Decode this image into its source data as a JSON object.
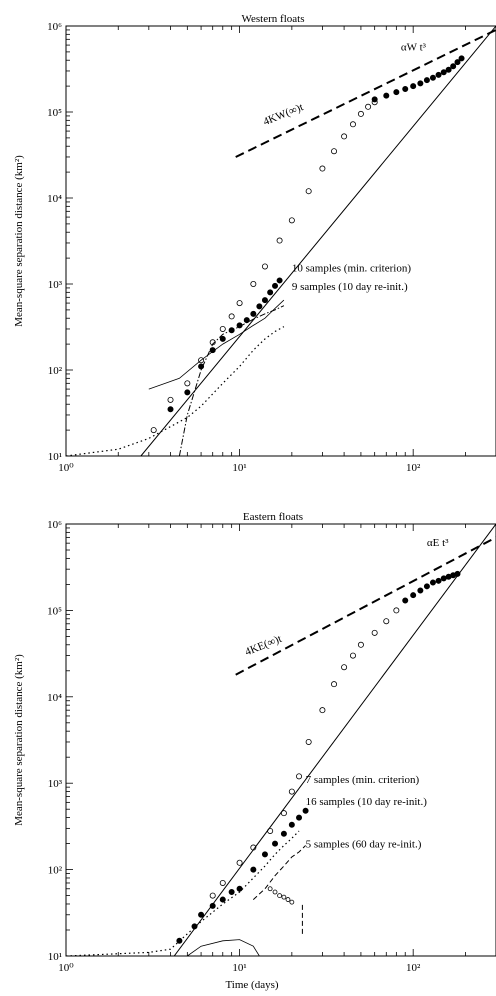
{
  "chart_data": [
    {
      "type": "scatter",
      "title": "Western floats",
      "xlabel": "",
      "ylabel": "Mean-square separation distance (km²)",
      "xscale": "log",
      "yscale": "log",
      "xlim": [
        1,
        300
      ],
      "ylim": [
        10,
        1000000
      ],
      "x_ticks": [
        {
          "value": 1,
          "label": "10⁰"
        },
        {
          "value": 10,
          "label": "10¹"
        },
        {
          "value": 100,
          "label": "10²"
        }
      ],
      "y_ticks": [
        {
          "value": 10,
          "label": "10¹"
        },
        {
          "value": 100,
          "label": "10²"
        },
        {
          "value": 1000,
          "label": "10³"
        },
        {
          "value": 10000,
          "label": "10⁴"
        },
        {
          "value": 100000,
          "label": "10⁵"
        },
        {
          "value": 1000000,
          "label": "10⁶"
        }
      ],
      "grid": false,
      "legend": "none",
      "annotations": [
        {
          "text": "αW t³",
          "x": 85,
          "y": 520000
        },
        {
          "text": "4KW(∞)t",
          "x": 14,
          "y": 70000,
          "rotate": -22
        },
        {
          "text": "10 samples (min. criterion)",
          "x": 20,
          "y": 1400
        },
        {
          "text": "9 samples (10 day re-init.)",
          "x": 20,
          "y": 850
        }
      ],
      "series": [
        {
          "style": "open-circles",
          "x": [
            3.2,
            4,
            5,
            6,
            7,
            8,
            9,
            10,
            12,
            14,
            17,
            20,
            25,
            30,
            35,
            40,
            45,
            50,
            55,
            60
          ],
          "y": [
            20,
            45,
            70,
            130,
            210,
            300,
            420,
            600,
            1000,
            1600,
            3200,
            5500,
            12000,
            22000,
            35000,
            52000,
            72000,
            95000,
            115000,
            130000
          ]
        },
        {
          "style": "filled-circles",
          "x": [
            4,
            5,
            6,
            7,
            8,
            9,
            10,
            11,
            12,
            13,
            14,
            15,
            16,
            17,
            60,
            70,
            80,
            90,
            100,
            110,
            120,
            130,
            140,
            150,
            160,
            170,
            180,
            190
          ],
          "y": [
            35,
            55,
            110,
            170,
            230,
            290,
            330,
            380,
            450,
            550,
            650,
            800,
            950,
            1100,
            140000,
            155000,
            170000,
            185000,
            200000,
            215000,
            235000,
            250000,
            270000,
            290000,
            310000,
            340000,
            380000,
            420000
          ]
        },
        {
          "style": "dotted-line",
          "x": [
            1,
            2,
            3,
            4,
            5,
            6,
            8,
            10,
            12,
            14,
            16,
            18
          ],
          "y": [
            10,
            12,
            16,
            22,
            28,
            38,
            70,
            110,
            170,
            230,
            280,
            320
          ]
        },
        {
          "style": "dashdot-line",
          "x": [
            4.5,
            5,
            6,
            7,
            8,
            10,
            12,
            14,
            16,
            18
          ],
          "y": [
            10,
            30,
            100,
            200,
            260,
            320,
            390,
            450,
            500,
            560
          ]
        },
        {
          "style": "thin-line",
          "x": [
            3,
            4.5,
            6,
            8,
            10,
            12,
            14,
            16,
            18
          ],
          "y": [
            60,
            80,
            130,
            200,
            260,
            330,
            400,
            520,
            650
          ]
        },
        {
          "style": "reference-line",
          "x": [
            2.7,
            300
          ],
          "y": [
            10,
            1000000
          ]
        },
        {
          "style": "reference-dashed",
          "x": [
            9.5,
            300
          ],
          "y": [
            30000,
            900000
          ]
        }
      ]
    },
    {
      "type": "scatter",
      "title": "Eastern floats",
      "xlabel": "Time (days)",
      "ylabel": "Mean-square separation distance (km²)",
      "xscale": "log",
      "yscale": "log",
      "xlim": [
        1,
        300
      ],
      "ylim": [
        10,
        1000000
      ],
      "x_ticks": [
        {
          "value": 1,
          "label": "10⁰"
        },
        {
          "value": 10,
          "label": "10¹"
        },
        {
          "value": 100,
          "label": "10²"
        }
      ],
      "y_ticks": [
        {
          "value": 10,
          "label": "10¹"
        },
        {
          "value": 100,
          "label": "10²"
        },
        {
          "value": 1000,
          "label": "10³"
        },
        {
          "value": 10000,
          "label": "10⁴"
        },
        {
          "value": 100000,
          "label": "10⁵"
        },
        {
          "value": 1000000,
          "label": "10⁶"
        }
      ],
      "grid": false,
      "legend": "none",
      "annotations": [
        {
          "text": "αE t³",
          "x": 120,
          "y": 560000
        },
        {
          "text": "4KE(∞)t",
          "x": 11,
          "y": 30000,
          "rotate": -22
        },
        {
          "text": "7 samples (min. criterion)",
          "x": 24,
          "y": 1000
        },
        {
          "text": "16 samples (10 day re-init.)",
          "x": 24,
          "y": 560
        },
        {
          "text": "5 samples (60 day re-init.)",
          "x": 24,
          "y": 180
        }
      ],
      "series": [
        {
          "style": "open-circles",
          "x": [
            7,
            8,
            10,
            12,
            15,
            18,
            20,
            22,
            25,
            30,
            35,
            40,
            45,
            50,
            60,
            70,
            80
          ],
          "y": [
            50,
            70,
            120,
            180,
            280,
            450,
            800,
            1200,
            3000,
            7000,
            14000,
            22000,
            30000,
            40000,
            55000,
            75000,
            100000
          ]
        },
        {
          "style": "filled-circles",
          "x": [
            4.5,
            5.5,
            6,
            7,
            8,
            9,
            10,
            12,
            14,
            16,
            18,
            20,
            22,
            24,
            90,
            100,
            110,
            120,
            130,
            140,
            150,
            160,
            170,
            180
          ],
          "y": [
            15,
            22,
            30,
            38,
            45,
            55,
            60,
            100,
            150,
            200,
            260,
            330,
            400,
            480,
            130000,
            150000,
            170000,
            190000,
            210000,
            220000,
            235000,
            245000,
            255000,
            265000
          ]
        },
        {
          "style": "dotted-line",
          "x": [
            1,
            3,
            4,
            5,
            6,
            8,
            10,
            12,
            14,
            16,
            18,
            20,
            22
          ],
          "y": [
            10,
            11,
            12,
            18,
            25,
            40,
            55,
            80,
            110,
            150,
            190,
            230,
            280
          ]
        },
        {
          "style": "dash-line",
          "x": [
            12,
            14,
            16,
            18,
            20,
            22,
            24
          ],
          "y": [
            45,
            60,
            85,
            110,
            140,
            160,
            190
          ]
        },
        {
          "style": "small-open-markers",
          "x": [
            15,
            16,
            17,
            18,
            19,
            20
          ],
          "y": [
            60,
            55,
            50,
            48,
            45,
            42
          ]
        },
        {
          "style": "thin-curve",
          "x": [
            5,
            6,
            8,
            10,
            12,
            13
          ],
          "y": [
            10,
            13,
            15,
            15.5,
            13,
            10
          ]
        },
        {
          "style": "dashed-vertical",
          "x": [
            23,
            23
          ],
          "y": [
            18,
            40
          ]
        },
        {
          "style": "reference-line",
          "x": [
            4.2,
            300
          ],
          "y": [
            10,
            1000000
          ]
        },
        {
          "style": "reference-dashed",
          "x": [
            9.5,
            300
          ],
          "y": [
            18000,
            700000
          ]
        }
      ]
    }
  ]
}
